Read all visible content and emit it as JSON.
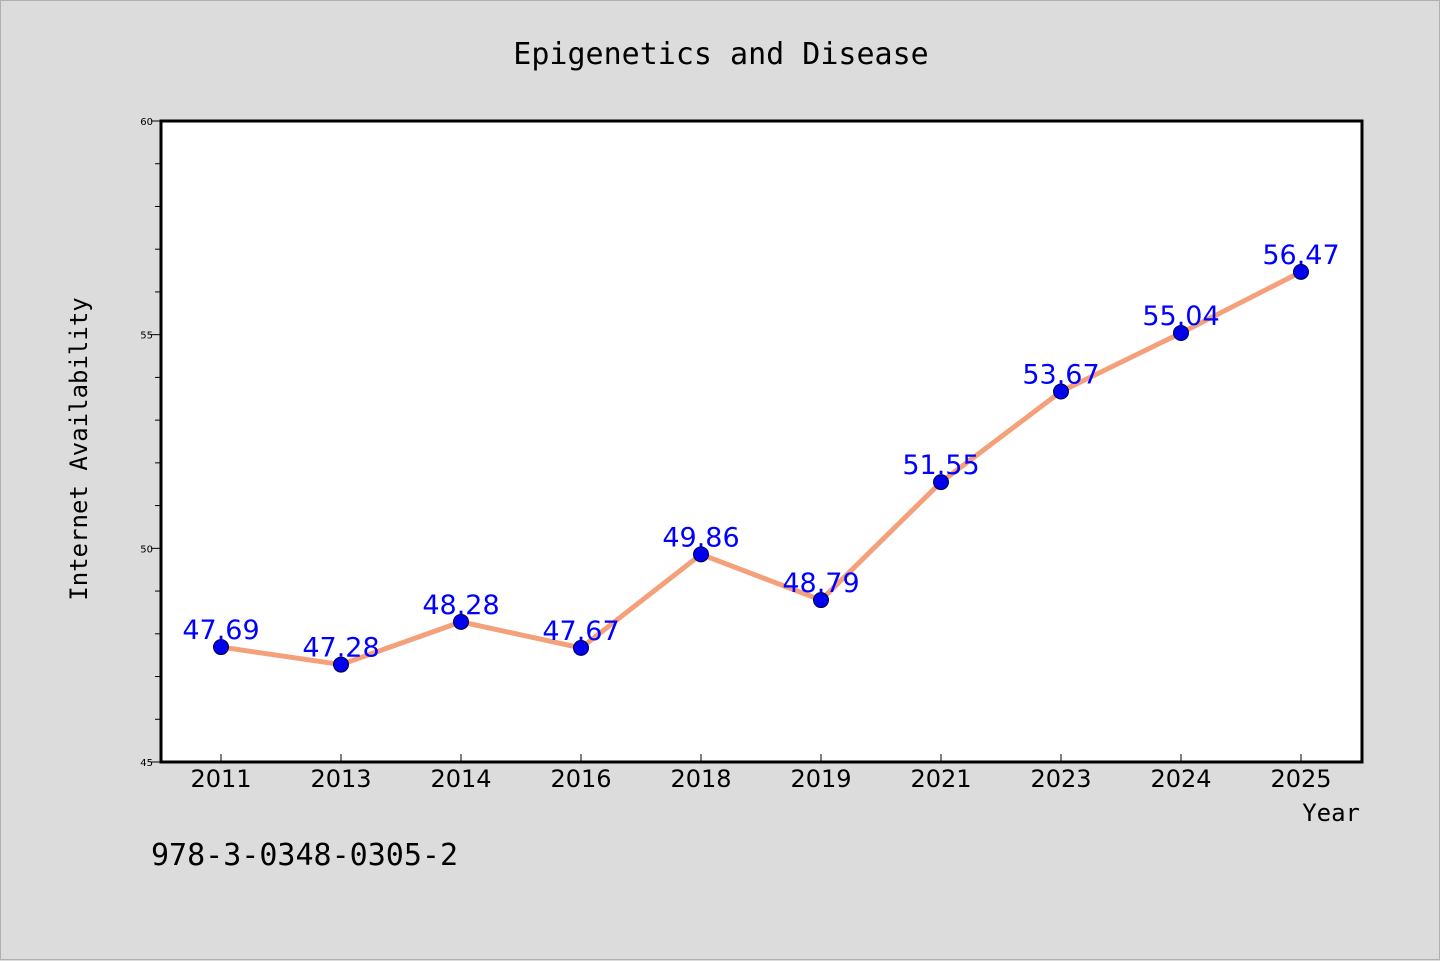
{
  "chart_data": {
    "type": "line",
    "title": "Epigenetics and Disease",
    "xlabel": "Year",
    "ylabel": "Internet Availability",
    "categories": [
      "2011",
      "2013",
      "2014",
      "2016",
      "2018",
      "2019",
      "2021",
      "2023",
      "2024",
      "2025"
    ],
    "series": [
      {
        "values": [
          47.69,
          47.28,
          48.28,
          47.67,
          49.86,
          48.79,
          51.55,
          53.67,
          55.04,
          56.47
        ],
        "line_color": "#f4a07a",
        "marker_color": "#0000ee",
        "label_color": "#0000ff"
      }
    ],
    "data_labels": [
      "47.69",
      "47.28",
      "48.28",
      "47.67",
      "49.86",
      "48.79",
      "51.55",
      "53.67",
      "55.04",
      "56.47"
    ],
    "ylim": [
      45,
      60
    ],
    "yticks": [
      "45",
      "50",
      "55",
      "60"
    ],
    "grid": false,
    "legend": "none"
  },
  "footer_text": "978-3-0348-0305-2"
}
